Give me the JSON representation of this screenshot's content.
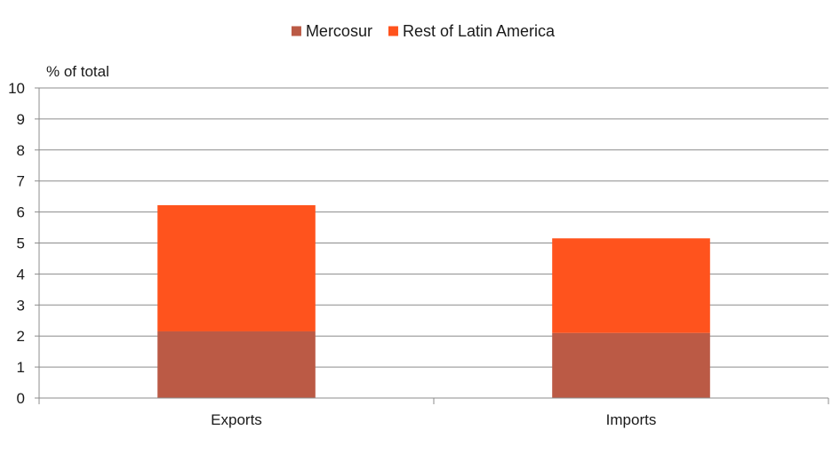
{
  "chart_data": {
    "type": "bar",
    "stacked": true,
    "categories": [
      "Exports",
      "Imports"
    ],
    "series": [
      {
        "name": "Mercosur",
        "values": [
          2.15,
          2.1
        ],
        "color": "#bb5a45"
      },
      {
        "name": "Rest of Latin America",
        "values": [
          4.07,
          3.05
        ],
        "color": "#ff531d"
      }
    ],
    "ylabel": "% of total",
    "ylim": [
      0,
      10
    ],
    "yticks": [
      "0",
      "1",
      "2",
      "3",
      "4",
      "5",
      "6",
      "7",
      "8",
      "9",
      "10"
    ],
    "grid": true,
    "legend_position": "top-center"
  }
}
